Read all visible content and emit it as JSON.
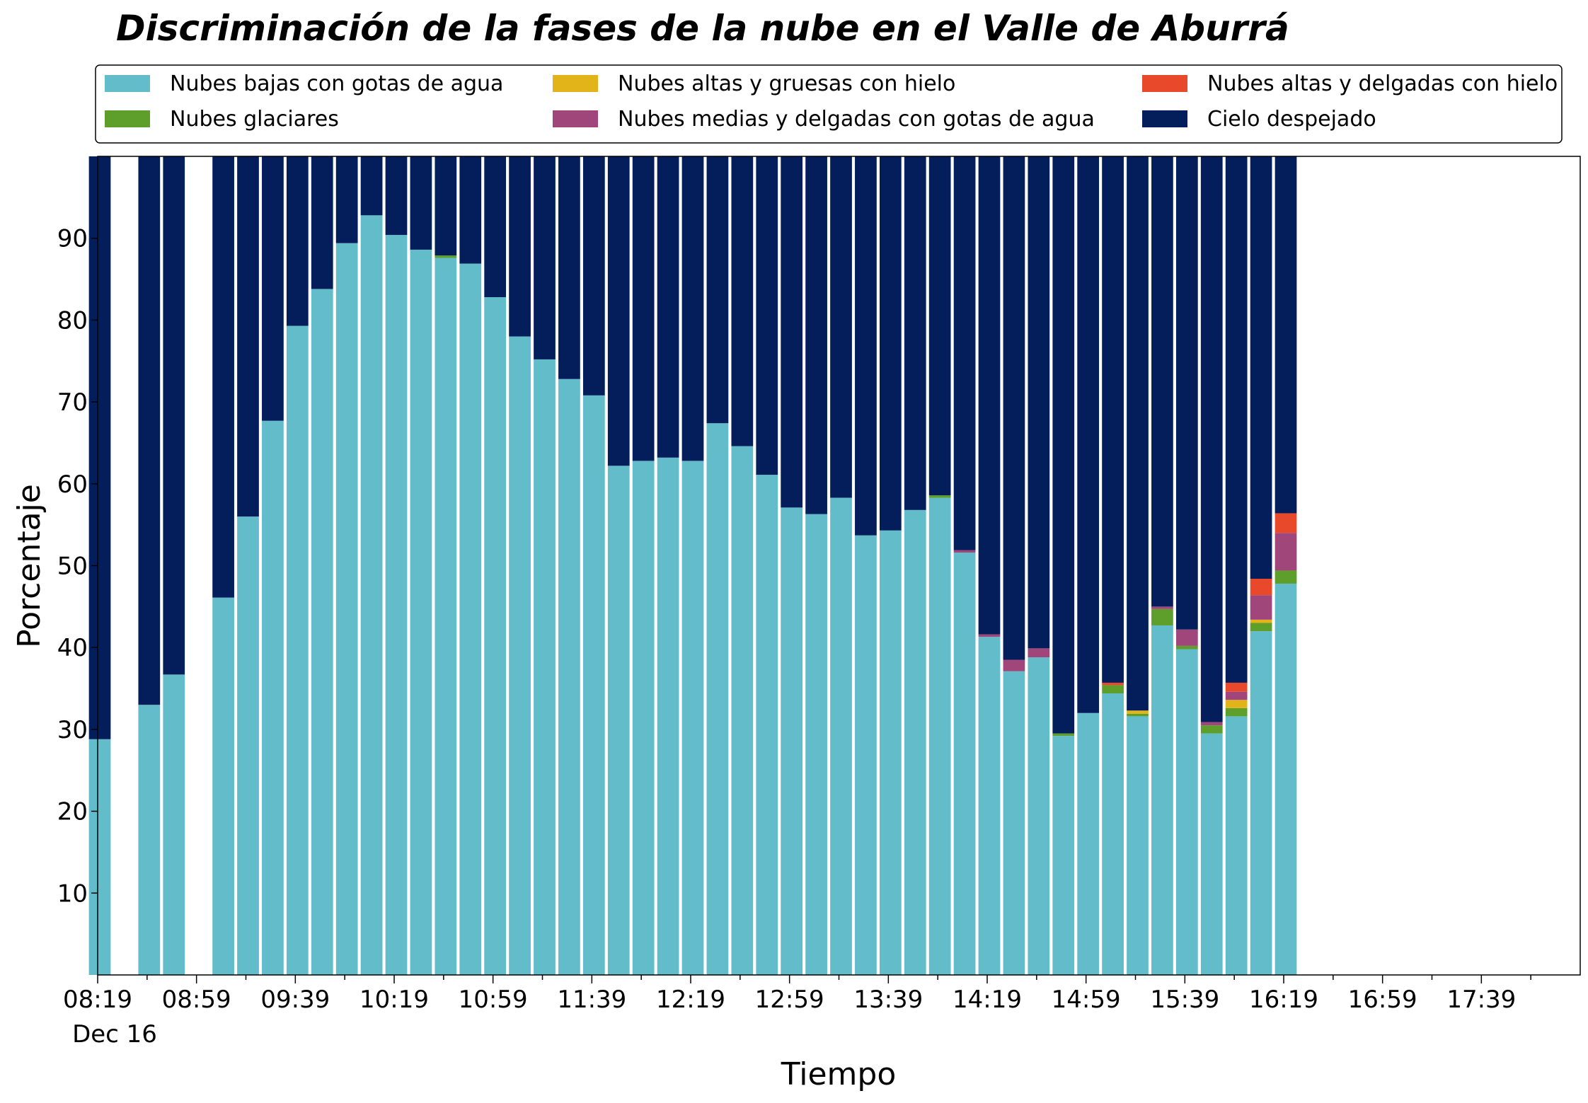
{
  "chart_data": {
    "type": "bar",
    "stacked": true,
    "title": "Discriminación de la fases de la nube en el Valle de Aburrá",
    "xlabel": "Tiempo",
    "ylabel": "Porcentaje",
    "ylim": [
      0,
      100
    ],
    "yticks": [
      10,
      20,
      30,
      40,
      50,
      60,
      70,
      80,
      90
    ],
    "xticks": [
      "08:19",
      "08:59",
      "09:39",
      "10:19",
      "10:59",
      "11:39",
      "12:19",
      "12:59",
      "13:39",
      "14:19",
      "14:59",
      "15:39",
      "16:19",
      "16:59",
      "17:39"
    ],
    "xtick_sublabel": "Dec 16",
    "x_start": "08:19",
    "x_end": "18:19",
    "interval_minutes": 10,
    "categories": [
      "08:19",
      "08:29",
      "08:39",
      "08:49",
      "08:59",
      "09:09",
      "09:19",
      "09:29",
      "09:39",
      "09:49",
      "09:59",
      "10:09",
      "10:19",
      "10:29",
      "10:39",
      "10:49",
      "10:59",
      "11:09",
      "11:19",
      "11:29",
      "11:39",
      "11:49",
      "11:59",
      "12:09",
      "12:19",
      "12:29",
      "12:39",
      "12:49",
      "12:59",
      "13:09",
      "13:19",
      "13:29",
      "13:39",
      "13:49",
      "13:59",
      "14:09",
      "14:19",
      "14:29",
      "14:39",
      "14:49",
      "14:59",
      "15:09",
      "15:19",
      "15:29",
      "15:39",
      "15:49",
      "15:59",
      "16:09",
      "16:19"
    ],
    "legend_position": "top",
    "legend_columns": 3,
    "series": [
      {
        "name": "Nubes bajas con gotas de agua",
        "color": "#63bcc9",
        "values": [
          28.8,
          0,
          33,
          36.7,
          0,
          46.1,
          56,
          67.7,
          79.3,
          83.8,
          89.4,
          92.8,
          90.4,
          88.6,
          87.6,
          86.9,
          82.8,
          78,
          75.2,
          72.8,
          70.8,
          62.2,
          62.8,
          63.2,
          62.8,
          67.4,
          64.6,
          61.1,
          57.1,
          56.3,
          58.3,
          53.7,
          54.3,
          56.8,
          58.3,
          51.6,
          41.3,
          37.1,
          38.8,
          29.2,
          32,
          34.4,
          31.6,
          42.7,
          39.8,
          29.5,
          31.6,
          42,
          47.8
        ]
      },
      {
        "name": "Nubes glaciares",
        "color": "#5e9e2a",
        "values": [
          0,
          0,
          0,
          0,
          0,
          0,
          0,
          0,
          0,
          0,
          0,
          0,
          0,
          0,
          0.3,
          0,
          0,
          0,
          0,
          0,
          0,
          0,
          0,
          0,
          0,
          0,
          0,
          0,
          0,
          0,
          0,
          0,
          0,
          0,
          0.3,
          0,
          0,
          0,
          0,
          0.3,
          0,
          1,
          0.3,
          2,
          0.4,
          1,
          1,
          1,
          1.6
        ]
      },
      {
        "name": "Nubes altas y gruesas con hielo",
        "color": "#e2b419",
        "values": [
          0,
          0,
          0,
          0,
          0,
          0,
          0,
          0,
          0,
          0,
          0,
          0,
          0,
          0,
          0,
          0,
          0,
          0,
          0,
          0,
          0,
          0,
          0,
          0,
          0,
          0,
          0,
          0,
          0,
          0,
          0,
          0,
          0,
          0,
          0,
          0,
          0,
          0,
          0,
          0,
          0,
          0,
          0.4,
          0,
          0,
          0,
          1,
          0.4,
          0
        ]
      },
      {
        "name": "Nubes medias y delgadas con gotas de agua",
        "color": "#a1467a",
        "values": [
          0,
          0,
          0,
          0,
          0,
          0,
          0,
          0,
          0,
          0,
          0,
          0,
          0,
          0,
          0,
          0,
          0,
          0,
          0,
          0,
          0,
          0,
          0,
          0,
          0,
          0,
          0,
          0,
          0,
          0,
          0,
          0,
          0,
          0,
          0,
          0.3,
          0.3,
          1.4,
          1.1,
          0,
          0,
          0,
          0,
          0.3,
          2,
          0.4,
          1,
          3,
          4.6
        ]
      },
      {
        "name": "Nubes altas y delgadas con hielo",
        "color": "#e8492a",
        "values": [
          0,
          0,
          0,
          0,
          0,
          0,
          0,
          0,
          0,
          0,
          0,
          0,
          0,
          0,
          0,
          0,
          0,
          0,
          0,
          0,
          0,
          0,
          0,
          0,
          0,
          0,
          0,
          0,
          0,
          0,
          0,
          0,
          0,
          0,
          0,
          0,
          0,
          0,
          0,
          0,
          0,
          0.3,
          0,
          0,
          0,
          0,
          1.1,
          2,
          2.4
        ]
      },
      {
        "name": "Cielo despejado",
        "color": "#041e5c",
        "values": [
          71.2,
          0,
          67,
          63.3,
          0,
          53.9,
          44,
          32.3,
          20.7,
          16.2,
          10.6,
          7.2,
          9.6,
          11.4,
          12.1,
          13.1,
          17.2,
          22,
          24.8,
          27.2,
          29.2,
          37.8,
          37.2,
          36.8,
          37.2,
          32.6,
          35.4,
          38.9,
          42.9,
          43.7,
          41.7,
          46.3,
          45.7,
          43.2,
          41.4,
          48.1,
          58.4,
          61.5,
          60.1,
          70.5,
          68,
          64.3,
          67.7,
          55,
          57.8,
          69.1,
          64.3,
          51.6,
          43.6
        ]
      }
    ]
  }
}
